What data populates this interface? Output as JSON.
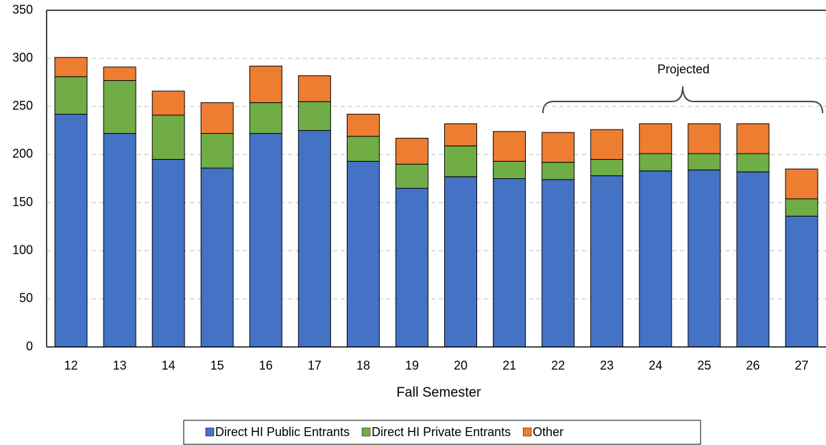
{
  "chart_data": {
    "type": "stacked_bar",
    "x_label": "Fall Semester",
    "annotation": "Projected",
    "categories": [
      "12",
      "13",
      "14",
      "15",
      "16",
      "17",
      "18",
      "19",
      "20",
      "21",
      "22",
      "23",
      "24",
      "25",
      "26",
      "27"
    ],
    "series": [
      {
        "name": "Direct HI Public Entrants",
        "color": "#4472c4",
        "values": [
          242,
          222,
          195,
          186,
          222,
          225,
          193,
          165,
          177,
          175,
          174,
          178,
          183,
          184,
          182,
          136
        ]
      },
      {
        "name": "Direct HI Private Entrants",
        "color": "#70ad47",
        "values": [
          39,
          55,
          46,
          36,
          32,
          30,
          26,
          25,
          32,
          18,
          18,
          17,
          18,
          17,
          19,
          18
        ]
      },
      {
        "name": "Other",
        "color": "#ed7d31",
        "values": [
          20,
          14,
          25,
          32,
          38,
          27,
          23,
          27,
          23,
          31,
          31,
          31,
          31,
          31,
          31,
          31
        ]
      }
    ],
    "ylim": [
      0,
      350
    ],
    "yticks": [
      0,
      50,
      100,
      150,
      200,
      250,
      300,
      350
    ],
    "grid": true,
    "legend": "bottom"
  }
}
